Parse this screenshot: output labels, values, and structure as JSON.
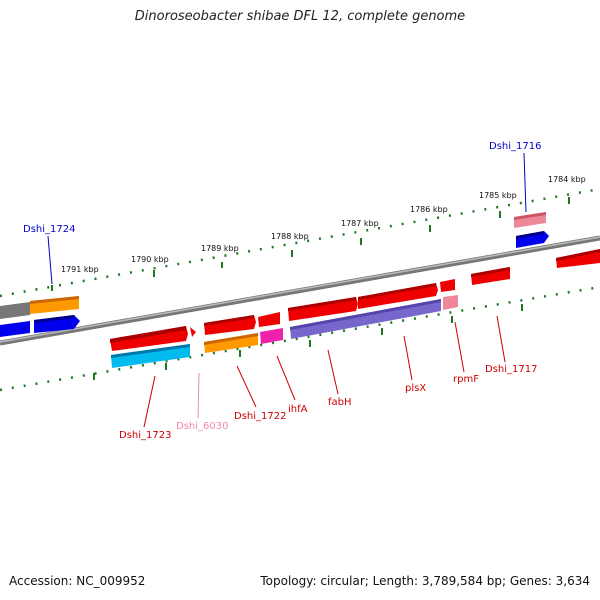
{
  "title": "Dinoroseobacter shibae DFL 12, complete genome",
  "footer": {
    "accession": "Accession: NC_009952",
    "stats": "Topology: circular; Length: 3,789,584 bp; Genes: 3,634"
  },
  "scale_labels": [
    "1791 kbp",
    "1790 kbp",
    "1789 kbp",
    "1788 kbp",
    "1787 kbp",
    "1786 kbp",
    "1785 kbp",
    "1784 kbp"
  ],
  "gene_labels": {
    "top": [
      {
        "id": "dshi1716",
        "text": "Dshi_1716",
        "color": "#0000cc"
      },
      {
        "id": "dshi1724",
        "text": "Dshi_1724",
        "color": "#0000cc"
      }
    ],
    "bottom": [
      {
        "id": "dshi1723",
        "text": "Dshi_1723",
        "color": "#cc0000"
      },
      {
        "id": "dshi6030",
        "text": "Dshi_6030",
        "color": "#ee88aa"
      },
      {
        "id": "dshi1722",
        "text": "Dshi_1722",
        "color": "#cc0000"
      },
      {
        "id": "ihfa",
        "text": "ihfA",
        "color": "#cc0000"
      },
      {
        "id": "fabh",
        "text": "fabH",
        "color": "#cc0000"
      },
      {
        "id": "plsx",
        "text": "plsX",
        "color": "#cc0000"
      },
      {
        "id": "rpmf",
        "text": "rpmF",
        "color": "#cc0000"
      },
      {
        "id": "dshi1717",
        "text": "Dshi_1717",
        "color": "#cc0000"
      }
    ]
  },
  "colors": {
    "forward_gene": "#ee0000",
    "reverse_gene": "#0000ee",
    "backbone": "#888888",
    "ticks": "#227722",
    "cds_cyan": "#00bbee",
    "cds_orange": "#ff9900",
    "cds_magenta": "#ee22aa",
    "cds_purple": "#7766cc",
    "cds_pink": "#ee8899",
    "cds_gray": "#777777"
  }
}
